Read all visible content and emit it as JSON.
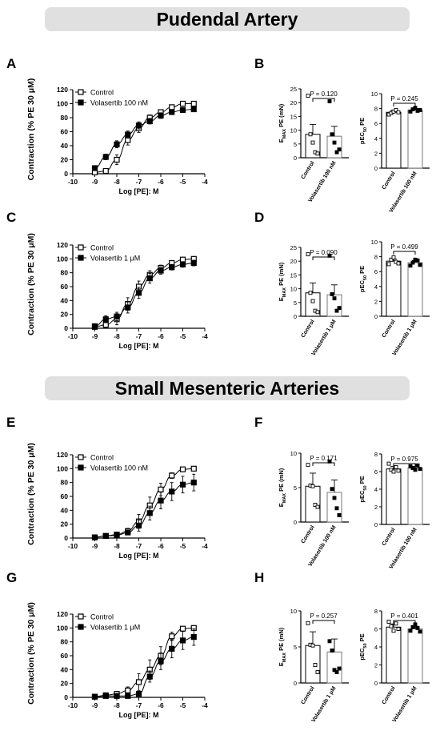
{
  "headers": [
    "Pudendal Artery",
    "Small Mesenteric Arteries"
  ],
  "panels": [
    "A",
    "B",
    "C",
    "D",
    "E",
    "F",
    "G",
    "H"
  ],
  "chart_data": [
    {
      "id": "A",
      "type": "line",
      "ylabel": "Contraction (% PE 30 μM)",
      "xlabel": "Log [PE]: M",
      "xlim": [
        -10,
        -4
      ],
      "ylim": [
        0,
        120
      ],
      "xticks": [
        "-10",
        "-9",
        "-8",
        "-7",
        "-6",
        "-5",
        "-4"
      ],
      "yticks": [
        "0",
        "20",
        "40",
        "60",
        "80",
        "100",
        "120"
      ],
      "legend_position": "top-left",
      "x": [
        -9,
        -8.5,
        -8,
        -7.5,
        -7,
        -6.5,
        -6,
        -5.5,
        -5,
        -4.5
      ],
      "series": [
        {
          "name": "Control",
          "marker": "open-square",
          "values": [
            2,
            4,
            20,
            48,
            65,
            80,
            88,
            95,
            100,
            100
          ],
          "error": [
            2,
            3,
            7,
            7,
            6,
            4,
            3,
            3,
            2,
            2
          ]
        },
        {
          "name": "Volasertib 100 nM",
          "marker": "filled-square",
          "values": [
            8,
            24,
            42,
            56,
            69,
            75,
            83,
            88,
            91,
            92
          ],
          "error": [
            3,
            4,
            5,
            5,
            5,
            4,
            4,
            3,
            3,
            3
          ]
        }
      ]
    },
    {
      "id": "B1",
      "type": "bar",
      "ylabel": "EMAX PE (mN)",
      "ylim": [
        0,
        25
      ],
      "yticks": [
        "0",
        "5",
        "10",
        "15",
        "20",
        "25"
      ],
      "categories": [
        "Control",
        "Volasertib 100 nM"
      ],
      "values": [
        8.5,
        7.8
      ],
      "error": [
        3.6,
        3.6
      ],
      "points": [
        [
          22.5,
          8.5,
          5.5,
          2,
          1.5
        ],
        [
          20.5,
          8.5,
          5.5,
          2,
          3
        ]
      ],
      "annotation": "P = 0.120"
    },
    {
      "id": "B2",
      "type": "bar",
      "ylabel": "pEC50 PE",
      "ylim": [
        0,
        10
      ],
      "yticks": [
        "0",
        "2",
        "4",
        "6",
        "8",
        "10"
      ],
      "categories": [
        "Control",
        "Volasertib 100 nM"
      ],
      "values": [
        7.5,
        7.8
      ],
      "error": [
        0.25,
        0.2
      ],
      "points": [
        [
          7.2,
          7.4,
          7.6,
          7.8,
          7.5
        ],
        [
          7.6,
          7.9,
          8.1,
          7.7,
          7.8
        ]
      ],
      "annotation": "P = 0.245"
    },
    {
      "id": "C",
      "type": "line",
      "ylabel": "Contraction (% PE 30 μM)",
      "xlabel": "Log [PE]: M",
      "xlim": [
        -10,
        -4
      ],
      "ylim": [
        0,
        120
      ],
      "xticks": [
        "-10",
        "-9",
        "-8",
        "-7",
        "-6",
        "-5",
        "-4"
      ],
      "yticks": [
        "0",
        "20",
        "40",
        "60",
        "80",
        "100",
        "120"
      ],
      "legend_position": "top-left",
      "x": [
        -9,
        -8.5,
        -8,
        -7.5,
        -7,
        -6.5,
        -6,
        -5.5,
        -5,
        -4.5
      ],
      "series": [
        {
          "name": "Control",
          "marker": "open-square",
          "values": [
            2,
            5,
            13,
            35,
            60,
            77,
            87,
            94,
            99,
            100
          ],
          "error": [
            2,
            4,
            8,
            9,
            8,
            6,
            4,
            3,
            2,
            2
          ]
        },
        {
          "name": "Volasertib 1 μM",
          "marker": "filled-square",
          "values": [
            3,
            13,
            17,
            30,
            51,
            72,
            83,
            88,
            92,
            94
          ],
          "error": [
            3,
            5,
            6,
            8,
            8,
            7,
            5,
            4,
            4,
            4
          ]
        }
      ]
    },
    {
      "id": "D1",
      "type": "bar",
      "ylabel": "EMAX PE (mN)",
      "ylim": [
        0,
        25
      ],
      "yticks": [
        "0",
        "5",
        "10",
        "15",
        "20",
        "25"
      ],
      "categories": [
        "Control",
        "Volasertib 1 μM"
      ],
      "values": [
        8.5,
        7.8
      ],
      "error": [
        3.6,
        3.6
      ],
      "points": [
        [
          22.5,
          8.5,
          5.5,
          2,
          1.5
        ],
        [
          22,
          8,
          6.5,
          2,
          3
        ]
      ],
      "annotation": "P = 0.090"
    },
    {
      "id": "D2",
      "type": "bar",
      "ylabel": "pEC50 PE",
      "ylim": [
        0,
        10
      ],
      "yticks": [
        "0",
        "2",
        "4",
        "6",
        "8",
        "10"
      ],
      "categories": [
        "Control",
        "Volasertib 1 μM"
      ],
      "values": [
        7.4,
        7.2
      ],
      "error": [
        0.3,
        0.3
      ],
      "points": [
        [
          7.0,
          7.6,
          7.9,
          7.3,
          7.1
        ],
        [
          6.8,
          7.2,
          7.6,
          7.5,
          6.9
        ]
      ],
      "annotation": "P = 0.499"
    },
    {
      "id": "E",
      "type": "line",
      "ylabel": "Contraction (% PE 30 μM)",
      "xlabel": "Log [PE]: M",
      "xlim": [
        -10,
        -4
      ],
      "ylim": [
        0,
        120
      ],
      "xticks": [
        "-10",
        "-9",
        "-8",
        "-7",
        "-6",
        "-5",
        "-4"
      ],
      "yticks": [
        "0",
        "20",
        "40",
        "60",
        "80",
        "100",
        "120"
      ],
      "legend_position": "top-left",
      "x": [
        -9,
        -8.5,
        -8,
        -7.5,
        -7,
        -6.5,
        -6,
        -5.5,
        -5,
        -4.5
      ],
      "series": [
        {
          "name": "Control",
          "marker": "open-square",
          "values": [
            1,
            3,
            5,
            10,
            24,
            47,
            70,
            90,
            99,
            100
          ],
          "error": [
            1,
            2,
            3,
            4,
            10,
            12,
            9,
            4,
            2,
            2
          ]
        },
        {
          "name": "Volasertib 100 nM",
          "marker": "filled-square",
          "values": [
            1,
            3,
            4,
            8,
            18,
            36,
            54,
            67,
            77,
            80
          ],
          "error": [
            1,
            2,
            2,
            3,
            8,
            10,
            12,
            13,
            12,
            12
          ]
        }
      ]
    },
    {
      "id": "F1",
      "type": "bar",
      "ylabel": "EMAX PE (mN)",
      "ylim": [
        0,
        10
      ],
      "yticks": [
        "0",
        "5",
        "10"
      ],
      "categories": [
        "Control",
        "Volasertib 100 nM"
      ],
      "values": [
        5.2,
        4.3
      ],
      "error": [
        1.9,
        1.8
      ],
      "points": [
        [
          8.3,
          5.3,
          5.2,
          2.5,
          2.2
        ],
        [
          8.8,
          4.8,
          3.5,
          2.0,
          1.0
        ]
      ],
      "annotation": "P = 0.171"
    },
    {
      "id": "F2",
      "type": "bar",
      "ylabel": "pEC50 PE",
      "ylim": [
        0,
        8
      ],
      "yticks": [
        "0",
        "2",
        "4",
        "6",
        "8"
      ],
      "categories": [
        "Control",
        "Volasertib 100 nM"
      ],
      "values": [
        6.3,
        6.4
      ],
      "error": [
        0.3,
        0.2
      ],
      "points": [
        [
          6.9,
          6.2,
          6.0,
          6.5,
          6.1
        ],
        [
          6.6,
          6.4,
          6.2,
          6.7,
          6.3
        ]
      ],
      "annotation": "P = 0.975"
    },
    {
      "id": "G",
      "type": "line",
      "ylabel": "Contraction (% PE 30 μM)",
      "xlabel": "Log [PE]: M",
      "xlim": [
        -10,
        -4
      ],
      "ylim": [
        0,
        120
      ],
      "xticks": [
        "-10",
        "-9",
        "-8",
        "-7",
        "-6",
        "-5",
        "-4"
      ],
      "yticks": [
        "0",
        "20",
        "40",
        "60",
        "80",
        "100",
        "120"
      ],
      "legend_position": "top-left",
      "x": [
        -9,
        -8.5,
        -8,
        -7.5,
        -7,
        -6.5,
        -6,
        -5.5,
        -5,
        -4.5
      ],
      "series": [
        {
          "name": "Control",
          "marker": "open-square",
          "values": [
            1,
            3,
            5,
            10,
            22,
            40,
            60,
            88,
            99,
            100
          ],
          "error": [
            1,
            2,
            3,
            5,
            12,
            14,
            13,
            6,
            3,
            2
          ]
        },
        {
          "name": "Volasertib 1 μM",
          "marker": "filled-square",
          "values": [
            1,
            2,
            2,
            2,
            5,
            30,
            52,
            70,
            82,
            87
          ],
          "error": [
            1,
            1,
            1,
            1,
            3,
            8,
            12,
            13,
            13,
            12
          ]
        }
      ]
    },
    {
      "id": "H1",
      "type": "bar",
      "ylabel": "EMAX PE (mN)",
      "ylim": [
        0,
        10
      ],
      "yticks": [
        "0",
        "5",
        "10"
      ],
      "categories": [
        "Control",
        "Volasertib 1 μM"
      ],
      "values": [
        5.2,
        4.3
      ],
      "error": [
        1.9,
        1.8
      ],
      "points": [
        [
          8.3,
          5.3,
          5.2,
          2.5,
          1.5
        ],
        [
          5.8,
          4.5,
          1.8,
          1.5,
          2.0
        ]
      ],
      "annotation": "P = 0.257"
    },
    {
      "id": "H2",
      "type": "bar",
      "ylabel": "pEC50 PE",
      "ylim": [
        0,
        8
      ],
      "yticks": [
        "0",
        "2",
        "4",
        "6",
        "8"
      ],
      "categories": [
        "Control",
        "Volasertib 1 μM"
      ],
      "values": [
        6.2,
        6.0
      ],
      "error": [
        0.35,
        0.3
      ],
      "points": [
        [
          6.8,
          6.3,
          5.8,
          6.6,
          6.0
        ],
        [
          5.8,
          6.2,
          6.5,
          6.1,
          5.7
        ]
      ],
      "annotation": "P = 0.401"
    }
  ]
}
